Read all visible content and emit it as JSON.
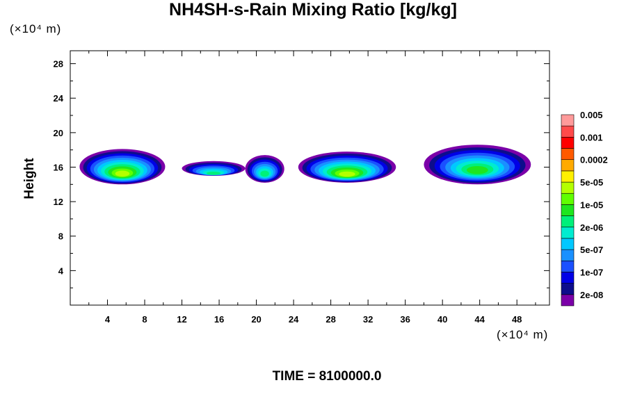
{
  "chart_data": {
    "type": "heatmap",
    "title": "NH4SH-s-Rain Mixing Ratio [kg/kg]",
    "ylabel": "Height",
    "x_unit": "(×10⁴ m)",
    "y_unit": "(×10⁴ m)",
    "footer": "TIME = 8100000.0",
    "xlim": [
      0,
      51.5
    ],
    "ylim": [
      0,
      29.5
    ],
    "x_ticks": [
      4,
      8,
      12,
      16,
      20,
      24,
      28,
      32,
      36,
      40,
      44,
      48
    ],
    "y_ticks": [
      4,
      8,
      12,
      16,
      20,
      24,
      28
    ],
    "colorbar": {
      "colors": [
        "#7b00a8",
        "#0d0d8c",
        "#0000e6",
        "#1a50ff",
        "#1a90ff",
        "#00c8ff",
        "#00ecd0",
        "#00f07a",
        "#1ee61e",
        "#60ff00",
        "#b4ff00",
        "#fff000",
        "#ffaa00",
        "#ff5a00",
        "#ff0000",
        "#ff4a4a",
        "#ff9a9a"
      ],
      "labels": [
        "2e-08",
        "1e-07",
        "5e-07",
        "2e-06",
        "1e-05",
        "5e-05",
        "0.0002",
        "0.001",
        "0.005"
      ]
    },
    "clouds": [
      {
        "x_range": [
          1.0,
          10.2
        ],
        "y_range": [
          14.0,
          18.1
        ],
        "max_level": "5e-05"
      },
      {
        "x_range": [
          12.0,
          18.8
        ],
        "y_range": [
          15.0,
          16.7
        ],
        "max_level": "5e-06"
      },
      {
        "x_range": [
          18.8,
          23.0
        ],
        "y_range": [
          14.2,
          17.4
        ],
        "max_level": "5e-06"
      },
      {
        "x_range": [
          24.5,
          35.0
        ],
        "y_range": [
          14.2,
          17.8
        ],
        "max_level": "5e-05"
      },
      {
        "x_range": [
          38.0,
          49.5
        ],
        "y_range": [
          14.0,
          18.6
        ],
        "max_level": "1e-05"
      }
    ]
  }
}
